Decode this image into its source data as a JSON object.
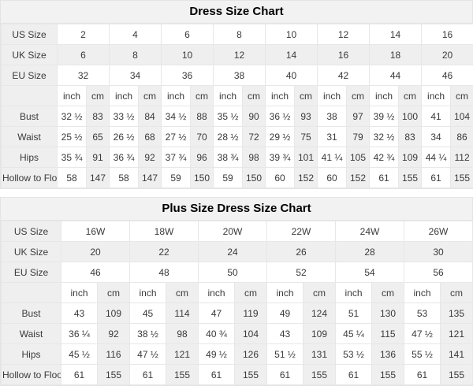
{
  "tables": [
    {
      "title": "Dress Size Chart",
      "units": [
        "inch",
        "cm"
      ],
      "size_rows": [
        {
          "label": "US Size",
          "values": [
            "2",
            "4",
            "6",
            "8",
            "10",
            "12",
            "14",
            "16"
          ]
        },
        {
          "label": "UK Size",
          "values": [
            "6",
            "8",
            "10",
            "12",
            "14",
            "16",
            "18",
            "20"
          ]
        },
        {
          "label": "EU Size",
          "values": [
            "32",
            "34",
            "36",
            "38",
            "40",
            "42",
            "44",
            "46"
          ]
        }
      ],
      "measure_rows": [
        {
          "label": "Bust",
          "pairs": [
            [
              "32 ½",
              "83"
            ],
            [
              "33 ½",
              "84"
            ],
            [
              "34 ½",
              "88"
            ],
            [
              "35 ½",
              "90"
            ],
            [
              "36 ½",
              "93"
            ],
            [
              "38",
              "97"
            ],
            [
              "39 ½",
              "100"
            ],
            [
              "41",
              "104"
            ]
          ]
        },
        {
          "label": "Waist",
          "pairs": [
            [
              "25 ½",
              "65"
            ],
            [
              "26 ½",
              "68"
            ],
            [
              "27 ½",
              "70"
            ],
            [
              "28 ½",
              "72"
            ],
            [
              "29 ½",
              "75"
            ],
            [
              "31",
              "79"
            ],
            [
              "32 ½",
              "83"
            ],
            [
              "34",
              "86"
            ]
          ]
        },
        {
          "label": "Hips",
          "pairs": [
            [
              "35 ¾",
              "91"
            ],
            [
              "36 ¾",
              "92"
            ],
            [
              "37 ¾",
              "96"
            ],
            [
              "38 ¾",
              "98"
            ],
            [
              "39 ¾",
              "101"
            ],
            [
              "41 ¼",
              "105"
            ],
            [
              "42 ¾",
              "109"
            ],
            [
              "44 ¼",
              "112"
            ]
          ]
        },
        {
          "label": "Hollow to Floor",
          "pairs": [
            [
              "58",
              "147"
            ],
            [
              "58",
              "147"
            ],
            [
              "59",
              "150"
            ],
            [
              "59",
              "150"
            ],
            [
              "60",
              "152"
            ],
            [
              "60",
              "152"
            ],
            [
              "61",
              "155"
            ],
            [
              "61",
              "155"
            ]
          ]
        }
      ]
    },
    {
      "title": "Plus Size Dress Size Chart",
      "units": [
        "inch",
        "cm"
      ],
      "size_rows": [
        {
          "label": "US Size",
          "values": [
            "16W",
            "18W",
            "20W",
            "22W",
            "24W",
            "26W"
          ]
        },
        {
          "label": "UK Size",
          "values": [
            "20",
            "22",
            "24",
            "26",
            "28",
            "30"
          ]
        },
        {
          "label": "EU Size",
          "values": [
            "46",
            "48",
            "50",
            "52",
            "54",
            "56"
          ]
        }
      ],
      "measure_rows": [
        {
          "label": "Bust",
          "pairs": [
            [
              "43",
              "109"
            ],
            [
              "45",
              "114"
            ],
            [
              "47",
              "119"
            ],
            [
              "49",
              "124"
            ],
            [
              "51",
              "130"
            ],
            [
              "53",
              "135"
            ]
          ]
        },
        {
          "label": "Waist",
          "pairs": [
            [
              "36 ¼",
              "92"
            ],
            [
              "38 ½",
              "98"
            ],
            [
              "40 ¾",
              "104"
            ],
            [
              "43",
              "109"
            ],
            [
              "45 ¼",
              "115"
            ],
            [
              "47 ½",
              "121"
            ]
          ]
        },
        {
          "label": "Hips",
          "pairs": [
            [
              "45 ½",
              "116"
            ],
            [
              "47 ½",
              "121"
            ],
            [
              "49 ½",
              "126"
            ],
            [
              "51 ½",
              "131"
            ],
            [
              "53 ½",
              "136"
            ],
            [
              "55 ½",
              "141"
            ]
          ]
        },
        {
          "label": "Hollow to Floor",
          "pairs": [
            [
              "61",
              "155"
            ],
            [
              "61",
              "155"
            ],
            [
              "61",
              "155"
            ],
            [
              "61",
              "155"
            ],
            [
              "61",
              "155"
            ],
            [
              "61",
              "155"
            ]
          ]
        }
      ]
    }
  ]
}
